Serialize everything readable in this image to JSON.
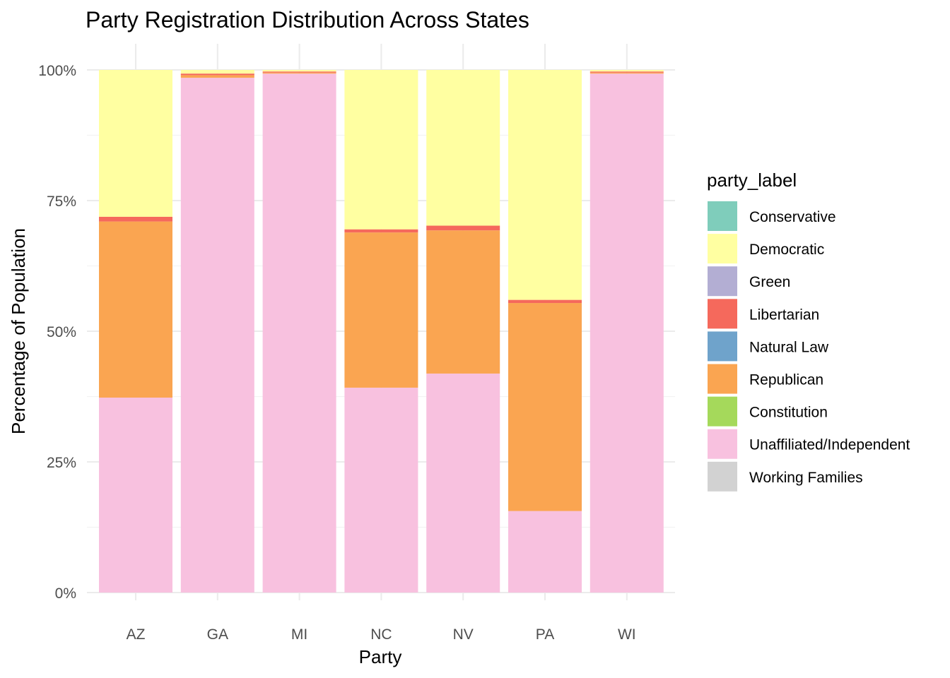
{
  "chart_data": {
    "type": "bar",
    "stacked": true,
    "normalized": true,
    "title": "Party Registration Distribution Across States",
    "xlabel": "Party",
    "ylabel": "Percentage of Population",
    "categories": [
      "AZ",
      "GA",
      "MI",
      "NC",
      "NV",
      "PA",
      "WI"
    ],
    "ylim": [
      0,
      1
    ],
    "yticks": [
      {
        "value": 0,
        "label": "0%"
      },
      {
        "value": 0.25,
        "label": "25%"
      },
      {
        "value": 0.5,
        "label": "50%"
      },
      {
        "value": 0.75,
        "label": "75%"
      },
      {
        "value": 1,
        "label": "100%"
      }
    ],
    "grid": true,
    "legend": {
      "title": "party_label",
      "position": "right",
      "entries": [
        "Conservative",
        "Democratic",
        "Green",
        "Libertarian",
        "Natural Law",
        "Republican",
        "Constitution",
        "Unaffiliated/Independent",
        "Working Families"
      ]
    },
    "stack_order_bottom_to_top": [
      "Unaffiliated/Independent",
      "Republican",
      "Libertarian",
      "Democratic"
    ],
    "series": [
      {
        "name": "Conservative",
        "color": "#7fcdbb",
        "values": [
          0,
          0,
          0,
          0,
          0,
          0,
          0
        ]
      },
      {
        "name": "Democratic",
        "color": "#ffffa1",
        "values": [
          0.281,
          0.007,
          0.003,
          0.305,
          0.298,
          0.44,
          0.003
        ]
      },
      {
        "name": "Green",
        "color": "#b3aed3",
        "values": [
          0,
          0,
          0,
          0,
          0,
          0,
          0
        ]
      },
      {
        "name": "Libertarian",
        "color": "#f5695c",
        "values": [
          0.009,
          0.003,
          0.002,
          0.006,
          0.009,
          0.006,
          0.002
        ]
      },
      {
        "name": "Natural Law",
        "color": "#6fa3cb",
        "values": [
          0,
          0,
          0,
          0,
          0,
          0,
          0
        ]
      },
      {
        "name": "Republican",
        "color": "#faa551",
        "values": [
          0.337,
          0.005,
          0.002,
          0.297,
          0.274,
          0.398,
          0.002
        ]
      },
      {
        "name": "Constitution",
        "color": "#a5d95b",
        "values": [
          0,
          0,
          0,
          0,
          0,
          0,
          0
        ]
      },
      {
        "name": "Unaffiliated/Independent",
        "color": "#f8c1df",
        "values": [
          0.373,
          0.985,
          0.993,
          0.392,
          0.419,
          0.156,
          0.993
        ]
      },
      {
        "name": "Working Families",
        "color": "#d2d2d2",
        "values": [
          0,
          0,
          0,
          0,
          0,
          0,
          0
        ]
      }
    ]
  }
}
